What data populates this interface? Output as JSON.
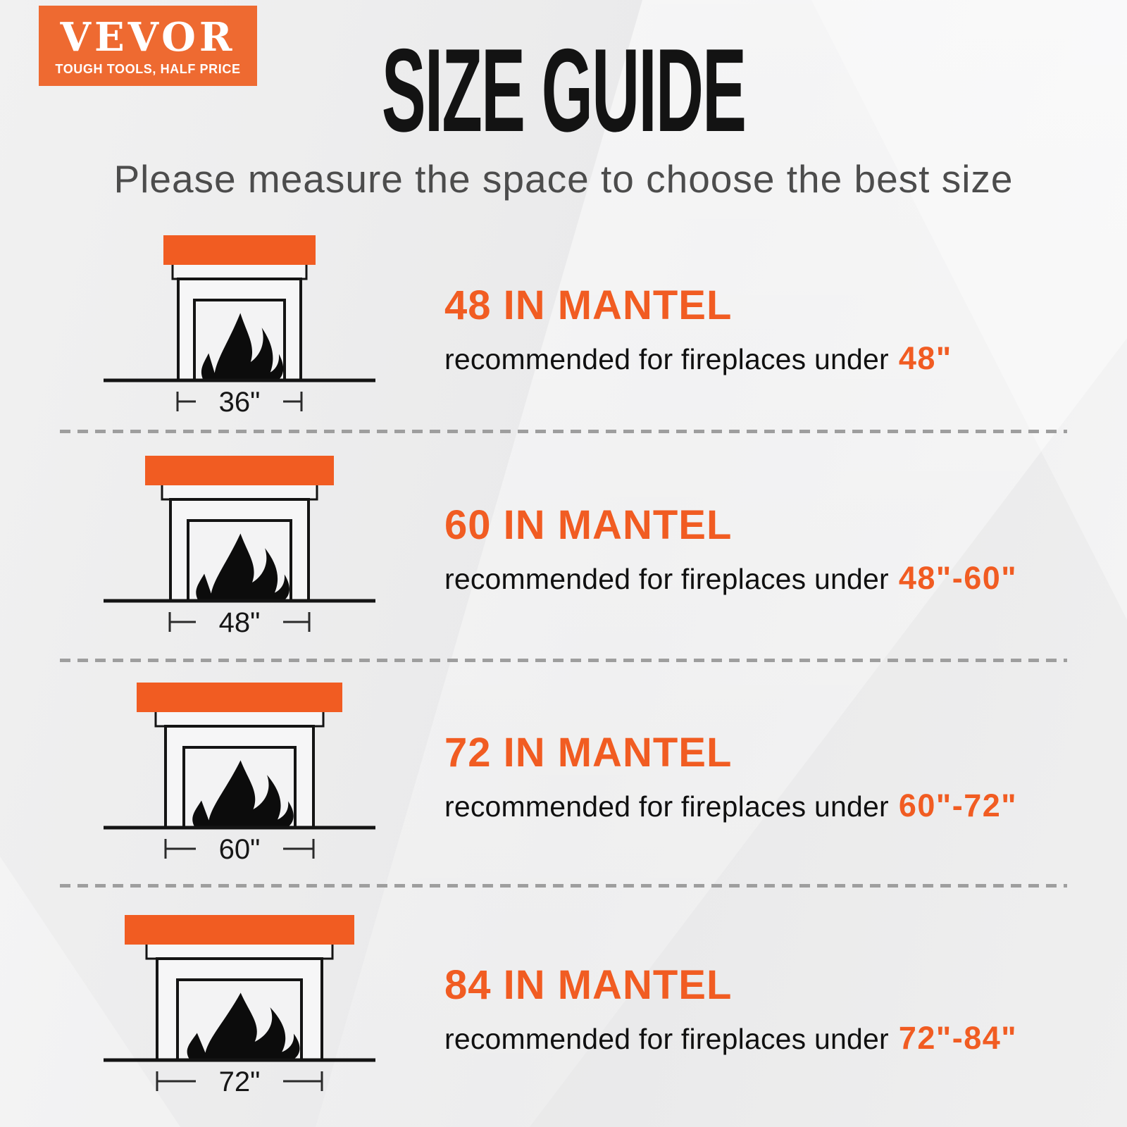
{
  "brand": {
    "name": "VEVOR",
    "tagline": "TOUGH TOOLS, HALF PRICE"
  },
  "header": {
    "title": "SIZE GUIDE",
    "subtitle": "Please measure the space to choose the best size"
  },
  "colors": {
    "accent": "#f15c22",
    "logo_background": "#ee6a31",
    "title_color": "#131313",
    "subtitle_color": "#4c4c4c",
    "text_color": "#101010",
    "divider_color": "#9e9e9e",
    "outline_color": "#141414"
  },
  "rows": [
    {
      "heading": "48 IN MANTEL",
      "description": "recommended for fireplaces under",
      "range": "48\"",
      "width_label": "36\""
    },
    {
      "heading": "60 IN MANTEL",
      "description": "recommended for fireplaces under",
      "range": "48\"-60\"",
      "width_label": "48\""
    },
    {
      "heading": "72 IN MANTEL",
      "description": "recommended for fireplaces under",
      "range": "60\"-72\"",
      "width_label": "60\""
    },
    {
      "heading": "84 IN MANTEL",
      "description": "recommended for fireplaces under",
      "range": "72\"-84\"",
      "width_label": "72\""
    }
  ]
}
